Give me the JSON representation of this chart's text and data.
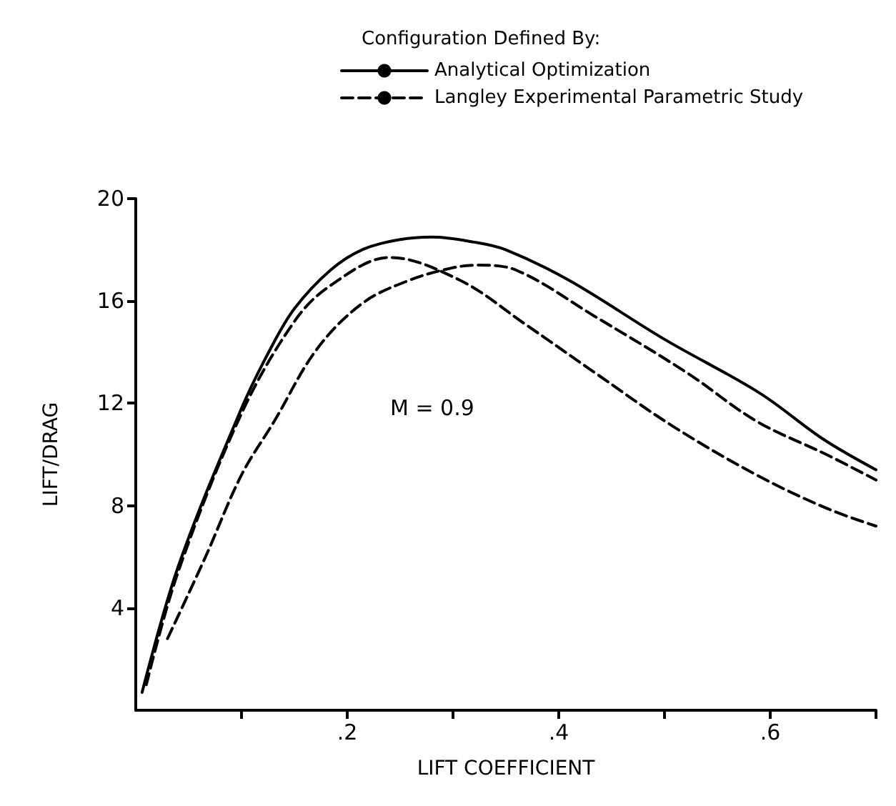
{
  "chart_data": {
    "type": "line",
    "legend_title": "Configuration Defined By:",
    "xlabel": "LIFT COEFFICIENT",
    "ylabel": "LIFT/DRAG",
    "annotations": [
      "M = 0.9"
    ],
    "xlim": [
      0,
      0.7
    ],
    "ylim": [
      0,
      20
    ],
    "xticks": [
      {
        "value": 0.1,
        "label": null
      },
      {
        "value": 0.2,
        "label": ".2"
      },
      {
        "value": 0.3,
        "label": null
      },
      {
        "value": 0.4,
        "label": ".4"
      },
      {
        "value": 0.5,
        "label": null
      },
      {
        "value": 0.6,
        "label": ".6"
      },
      {
        "value": 0.7,
        "label": null
      }
    ],
    "yticks": [
      4,
      8,
      12,
      16,
      20
    ],
    "grid": false,
    "legend": "top",
    "marker": "none",
    "series": [
      {
        "name": "Analytical Optimization",
        "color": "#000000",
        "line_style": "solid",
        "x": [
          0.006,
          0.04,
          0.1,
          0.127,
          0.15,
          0.184,
          0.214,
          0.25,
          0.28,
          0.32,
          0.35,
          0.41,
          0.5,
          0.59,
          0.65,
          0.7
        ],
        "values": [
          0.7,
          5.6,
          11.8,
          14.1,
          15.7,
          17.2,
          18.0,
          18.4,
          18.5,
          18.3,
          18.0,
          16.8,
          14.5,
          12.4,
          10.6,
          9.4
        ]
      },
      {
        "name": "Langley Experimental Parametric Study",
        "color": "#000000",
        "line_style": "dashed",
        "x": [
          0.01,
          0.04,
          0.1,
          0.15,
          0.184,
          0.24,
          0.307,
          0.368,
          0.434,
          0.508,
          0.587,
          0.653,
          0.7
        ],
        "values": [
          1.0,
          5.4,
          11.6,
          15.2,
          16.6,
          17.7,
          16.8,
          15.1,
          13.2,
          11.1,
          9.2,
          7.9,
          7.2
        ]
      },
      {
        "color": "#000000",
        "line_style": "dashed",
        "x": [
          0.03,
          0.066,
          0.1,
          0.131,
          0.171,
          0.214,
          0.258,
          0.3,
          0.324,
          0.36,
          0.434,
          0.521,
          0.587,
          0.653,
          0.7
        ],
        "values": [
          2.8,
          6.0,
          9.2,
          11.3,
          14.1,
          15.9,
          16.8,
          17.3,
          17.4,
          17.2,
          15.4,
          13.2,
          11.3,
          10.0,
          9.0
        ]
      }
    ]
  }
}
